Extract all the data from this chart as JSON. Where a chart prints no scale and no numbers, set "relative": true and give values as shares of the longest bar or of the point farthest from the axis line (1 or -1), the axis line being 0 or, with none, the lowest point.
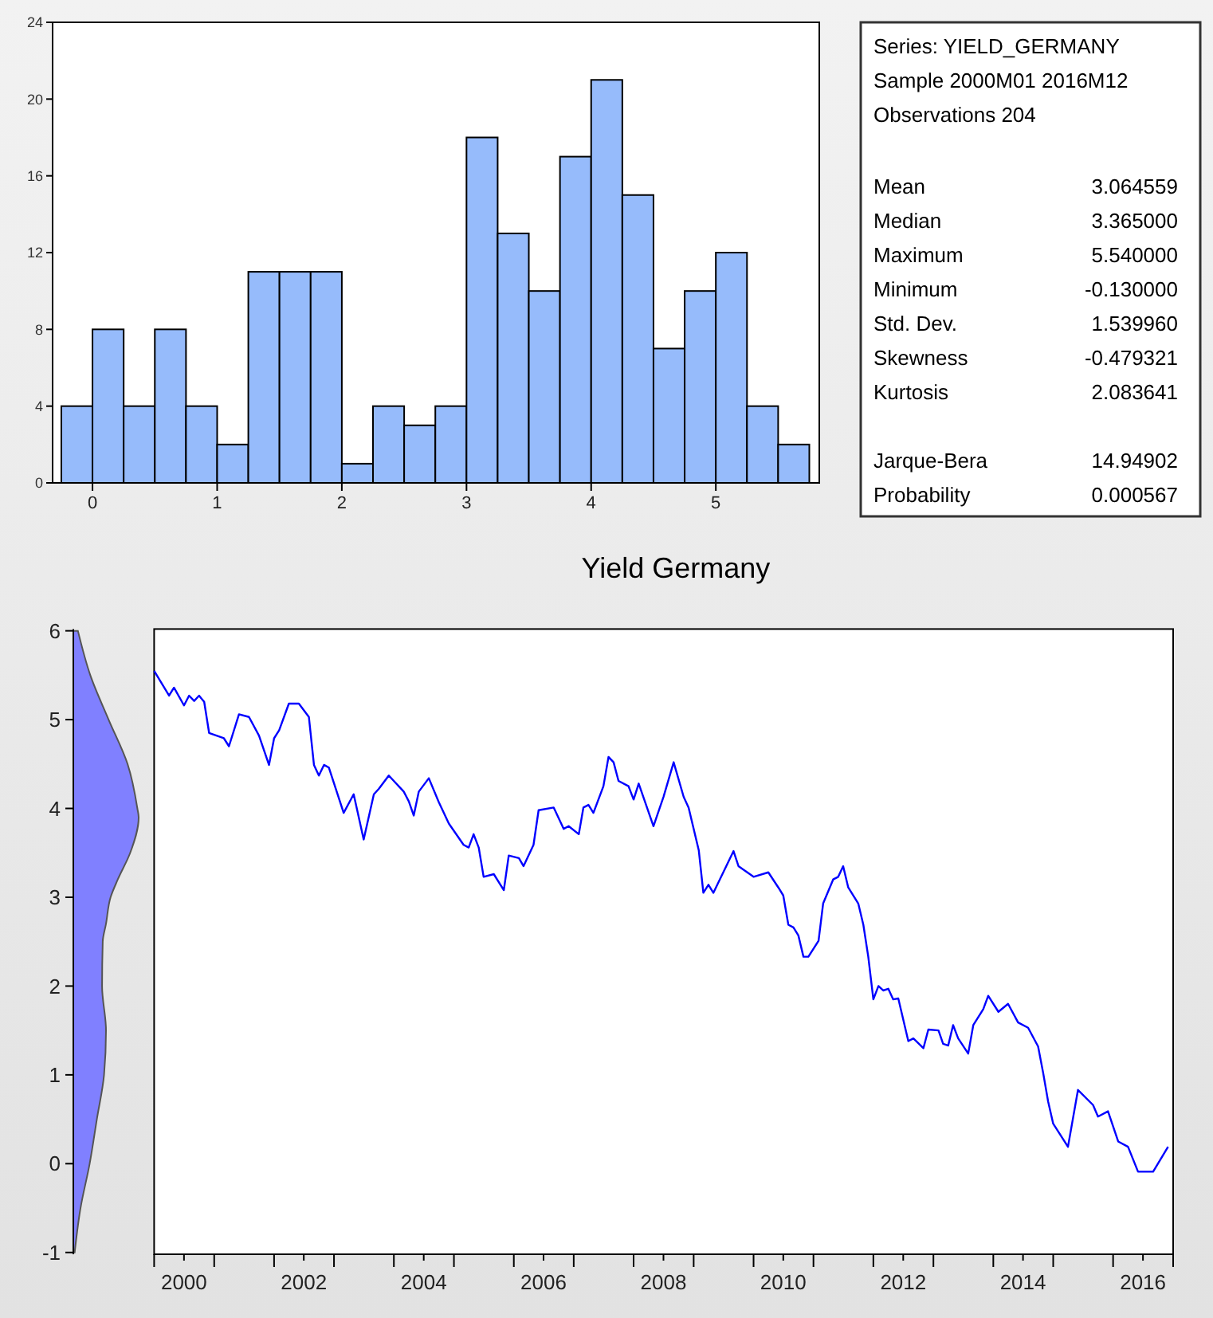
{
  "chart_data": [
    {
      "type": "histogram",
      "bins": [
        -0.25,
        0,
        0.25,
        0.5,
        0.75,
        1,
        1.25,
        1.5,
        1.75,
        2,
        2.25,
        2.5,
        2.75,
        3,
        3.25,
        3.5,
        3.75,
        4,
        4.25,
        4.5,
        4.75,
        5,
        5.25,
        5.5,
        5.75
      ],
      "values": [
        4,
        8,
        4,
        8,
        4,
        2,
        11,
        11,
        11,
        1,
        4,
        3,
        4,
        18,
        13,
        10,
        17,
        21,
        15,
        7,
        10,
        12,
        4,
        2
      ],
      "color": "#96bbfb",
      "xlim": [
        -0.32,
        5.83
      ],
      "xticks": [
        0,
        1,
        2,
        3,
        4,
        5
      ],
      "ylim": [
        0,
        24
      ],
      "yticks": [
        0,
        4,
        8,
        12,
        16,
        20,
        24
      ]
    },
    {
      "type": "other",
      "annotations": [
        "Series: YIELD_GERMANY",
        "Sample 2000M01 2016M12",
        "Observations 204",
        "Mean",
        "3.064559",
        "Median",
        "3.365000",
        "Maximum",
        "5.540000",
        "Minimum",
        "-0.130000",
        "Std. Dev.",
        "1.539960",
        "Skewness",
        "-0.479321",
        "Kurtosis",
        "2.083641",
        "Jarque-Bera",
        "14.94902",
        "Probability",
        "0.000567"
      ]
    },
    {
      "type": "area",
      "relative": true,
      "orientation": "horizontal",
      "color": "#8080ff",
      "x": [
        -1,
        -0.5,
        0,
        0.5,
        1,
        1.5,
        2,
        2.5,
        2.7,
        3,
        3.2,
        3.5,
        3.9,
        4,
        4.5,
        5,
        5.5,
        6
      ],
      "values": [
        0.02,
        0.11,
        0.25,
        0.36,
        0.47,
        0.5,
        0.44,
        0.45,
        0.5,
        0.57,
        0.68,
        0.87,
        1,
        0.98,
        0.83,
        0.54,
        0.26,
        0.07
      ],
      "ylim": [
        -1.02,
        6.02
      ],
      "yticks": [
        -1,
        0,
        1,
        2,
        3,
        4,
        5,
        6
      ],
      "tick_labels": "y"
    },
    {
      "type": "line",
      "title": "Yield Germany",
      "color": "#0000ff",
      "tick_labels": "x",
      "ylim": [
        -1.02,
        6.02
      ],
      "xlim": [
        "2000-01",
        "2017-01"
      ],
      "xticks": [
        {
          "value": "2000-01",
          "label": null
        },
        {
          "value": "2000-07",
          "label": "2000"
        },
        {
          "value": "2001-01",
          "label": null
        },
        {
          "value": "2002-01",
          "label": null
        },
        {
          "value": "2002-07",
          "label": "2002"
        },
        {
          "value": "2003-01",
          "label": null
        },
        {
          "value": "2004-01",
          "label": null
        },
        {
          "value": "2004-07",
          "label": "2004"
        },
        {
          "value": "2005-01",
          "label": null
        },
        {
          "value": "2006-01",
          "label": null
        },
        {
          "value": "2006-07",
          "label": "2006"
        },
        {
          "value": "2007-01",
          "label": null
        },
        {
          "value": "2008-01",
          "label": null
        },
        {
          "value": "2008-07",
          "label": "2008"
        },
        {
          "value": "2009-01",
          "label": null
        },
        {
          "value": "2010-01",
          "label": null
        },
        {
          "value": "2010-07",
          "label": "2010"
        },
        {
          "value": "2011-01",
          "label": null
        },
        {
          "value": "2012-01",
          "label": null
        },
        {
          "value": "2012-07",
          "label": "2012"
        },
        {
          "value": "2013-01",
          "label": null
        },
        {
          "value": "2014-01",
          "label": null
        },
        {
          "value": "2014-07",
          "label": "2014"
        },
        {
          "value": "2015-01",
          "label": null
        },
        {
          "value": "2016-01",
          "label": null
        },
        {
          "value": "2016-07",
          "label": "2016"
        },
        {
          "value": "2017-01",
          "label": null
        }
      ],
      "x": [
        "2000-01",
        "2000-04",
        "2000-05",
        "2000-07",
        "2000-08",
        "2000-09",
        "2000-10",
        "2000-11",
        "2000-12",
        "2001-03",
        "2001-04",
        "2001-06",
        "2001-08",
        "2001-10",
        "2001-12",
        "2002-01",
        "2002-02",
        "2002-04",
        "2002-06",
        "2002-08",
        "2002-09",
        "2002-10",
        "2002-11",
        "2002-12",
        "2003-03",
        "2003-05",
        "2003-07",
        "2003-09",
        "2003-10",
        "2003-12",
        "2004-03",
        "2004-04",
        "2004-05",
        "2004-06",
        "2004-08",
        "2004-10",
        "2004-12",
        "2005-03",
        "2005-04",
        "2005-05",
        "2005-06",
        "2005-07",
        "2005-09",
        "2005-11",
        "2005-12",
        "2006-02",
        "2006-03",
        "2006-05",
        "2006-06",
        "2006-09",
        "2006-11",
        "2006-12",
        "2007-02",
        "2007-03",
        "2007-04",
        "2007-05",
        "2007-07",
        "2007-08",
        "2007-09",
        "2007-10",
        "2007-12",
        "2008-01",
        "2008-02",
        "2008-05",
        "2008-07",
        "2008-09",
        "2008-11",
        "2008-12",
        "2009-02",
        "2009-03",
        "2009-04",
        "2009-05",
        "2009-09",
        "2009-10",
        "2010-01",
        "2010-04",
        "2010-06",
        "2010-07",
        "2010-08",
        "2010-09",
        "2010-10",
        "2010-11",
        "2010-12",
        "2011-02",
        "2011-03",
        "2011-05",
        "2011-06",
        "2011-07",
        "2011-08",
        "2011-10",
        "2011-11",
        "2011-12",
        "2012-01",
        "2012-02",
        "2012-03",
        "2012-04",
        "2012-05",
        "2012-06",
        "2012-08",
        "2012-09",
        "2012-11",
        "2012-12",
        "2013-02",
        "2013-03",
        "2013-04",
        "2013-05",
        "2013-06",
        "2013-08",
        "2013-09",
        "2013-11",
        "2013-12",
        "2014-02",
        "2014-04",
        "2014-06",
        "2014-08",
        "2014-10",
        "2014-11",
        "2014-12",
        "2015-01",
        "2015-04",
        "2015-06",
        "2015-09",
        "2015-10",
        "2015-12",
        "2016-02",
        "2016-04",
        "2016-06",
        "2016-09",
        "2016-12"
      ],
      "values": [
        5.55,
        5.27,
        5.36,
        5.16,
        5.27,
        5.21,
        5.27,
        5.2,
        4.85,
        4.79,
        4.7,
        5.06,
        5.03,
        4.82,
        4.49,
        4.79,
        4.88,
        5.18,
        5.18,
        5.03,
        4.49,
        4.37,
        4.49,
        4.46,
        3.95,
        4.16,
        3.65,
        4.16,
        4.22,
        4.37,
        4.19,
        4.08,
        3.92,
        4.19,
        4.34,
        4.07,
        3.83,
        3.59,
        3.56,
        3.71,
        3.56,
        3.23,
        3.26,
        3.08,
        3.47,
        3.44,
        3.35,
        3.59,
        3.98,
        4.01,
        3.77,
        3.8,
        3.71,
        4.01,
        4.04,
        3.95,
        4.25,
        4.58,
        4.52,
        4.31,
        4.25,
        4.1,
        4.28,
        3.8,
        4.13,
        4.52,
        4.13,
        4.01,
        3.53,
        3.05,
        3.14,
        3.05,
        3.52,
        3.35,
        3.23,
        3.28,
        3.11,
        3.02,
        2.69,
        2.66,
        2.57,
        2.33,
        2.33,
        2.51,
        2.93,
        3.2,
        3.23,
        3.35,
        3.11,
        2.93,
        2.69,
        2.33,
        1.85,
        2.0,
        1.95,
        1.97,
        1.85,
        1.86,
        1.38,
        1.41,
        1.3,
        1.51,
        1.5,
        1.35,
        1.33,
        1.56,
        1.41,
        1.24,
        1.56,
        1.74,
        1.89,
        1.71,
        1.8,
        1.59,
        1.53,
        1.32,
        1.02,
        0.7,
        0.45,
        0.19,
        0.83,
        0.66,
        0.53,
        0.59,
        0.25,
        0.19,
        -0.09,
        -0.09,
        0.19
      ]
    }
  ]
}
